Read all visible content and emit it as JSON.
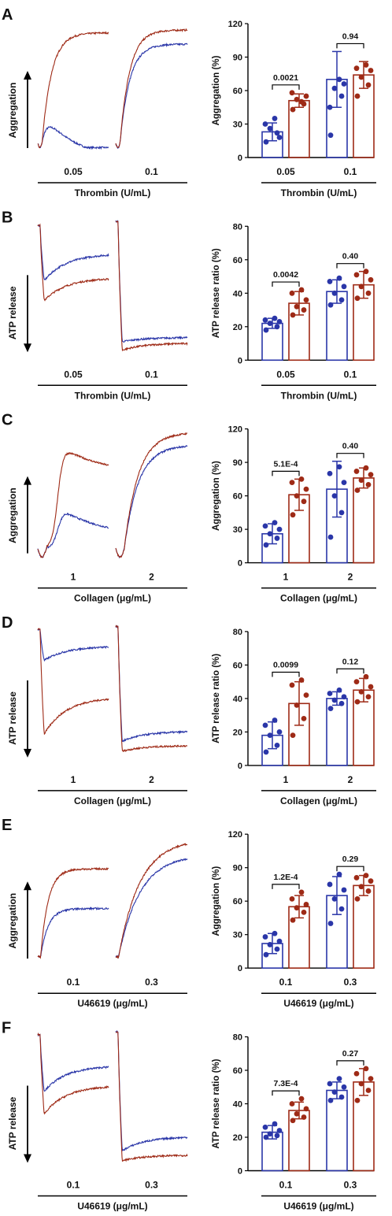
{
  "colors": {
    "control": "#2a36a8",
    "treated": "#9e2a16",
    "axis": "#111111"
  },
  "panels": [
    {
      "label": "A",
      "trace": {
        "ylabel": "Aggregation",
        "arrow": "up",
        "doses": [
          "0.05",
          "0.1"
        ],
        "xtitle": "Thrombin (U/mL)",
        "kind": "agg",
        "segments": [
          {
            "control": {
              "start": 0.1,
              "peak": 0.33,
              "end": 0.07
            },
            "treated": {
              "start": 0.1,
              "peak": 0.88,
              "end": 0.88
            }
          },
          {
            "control": {
              "start": 0.1,
              "peak": 0.8,
              "end": 0.8
            },
            "treated": {
              "start": 0.1,
              "peak": 0.9,
              "end": 0.9
            }
          }
        ]
      },
      "chart_data": {
        "type": "bar",
        "ylabel": "Aggregation (%)",
        "xlabel": "Thrombin (U/mL)",
        "ylim": [
          0,
          120
        ],
        "yticks": [
          0,
          30,
          60,
          90,
          120
        ],
        "categories": [
          "0.05",
          "0.1"
        ],
        "series": [
          {
            "values": [
              23,
              70
            ],
            "errors": [
              8,
              25
            ],
            "points": [
              [
                14,
                22,
                26,
                18,
                30,
                35
              ],
              [
                20,
                55,
                62,
                66,
                45,
                70
              ]
            ]
          },
          {
            "values": [
              51,
              74
            ],
            "errors": [
              6,
              12
            ],
            "points": [
              [
                43,
                48,
                52,
                55,
                58,
                50
              ],
              [
                55,
                65,
                72,
                78,
                80,
                83
              ]
            ]
          }
        ],
        "annotations": [
          "0.0021",
          "0.94"
        ]
      }
    },
    {
      "label": "B",
      "trace": {
        "ylabel": "ATP release",
        "arrow": "down",
        "doses": [
          "0.05",
          "0.1"
        ],
        "xtitle": "Thrombin (U/mL)",
        "kind": "atp",
        "segments": [
          {
            "control": {
              "start": 0.95,
              "peak": 0.56,
              "end": 0.75
            },
            "treated": {
              "start": 0.95,
              "peak": 0.42,
              "end": 0.58
            }
          },
          {
            "control": {
              "start": 0.98,
              "peak": 0.13,
              "end": 0.16
            },
            "treated": {
              "start": 0.98,
              "peak": 0.07,
              "end": 0.12
            }
          }
        ]
      },
      "chart_data": {
        "type": "bar",
        "ylabel": "ATP release ratio (%)",
        "xlabel": "Thrombin (U/mL)",
        "ylim": [
          0,
          80
        ],
        "yticks": [
          0,
          20,
          40,
          60,
          80
        ],
        "categories": [
          "0.05",
          "0.1"
        ],
        "series": [
          {
            "values": [
              22,
              41
            ],
            "errors": [
              3,
              7
            ],
            "points": [
              [
                18,
                20,
                22,
                23,
                24,
                25
              ],
              [
                33,
                36,
                40,
                44,
                47,
                49
              ]
            ]
          },
          {
            "values": [
              34,
              45
            ],
            "errors": [
              7,
              8
            ],
            "points": [
              [
                27,
                30,
                32,
                36,
                40,
                42
              ],
              [
                37,
                40,
                44,
                48,
                51,
                53
              ]
            ]
          }
        ],
        "annotations": [
          "0.0042",
          "0.40"
        ]
      }
    },
    {
      "label": "C",
      "trace": {
        "ylabel": "Aggregation",
        "arrow": "up",
        "doses": [
          "1",
          "2"
        ],
        "xtitle": "Collagen (μg/mL)",
        "kind": "agg2",
        "segments": [
          {
            "control": {
              "start": 0.1,
              "peak": 0.36,
              "end": 0.18
            },
            "treated": {
              "start": 0.1,
              "peak": 0.8,
              "end": 0.62
            }
          },
          {
            "control": {
              "start": 0.1,
              "peak": 0.83,
              "end": 0.83
            },
            "treated": {
              "start": 0.1,
              "peak": 0.92,
              "end": 0.92
            }
          }
        ]
      },
      "chart_data": {
        "type": "bar",
        "ylabel": "Aggregation (%)",
        "xlabel": "Collagen (μg/mL)",
        "ylim": [
          0,
          120
        ],
        "yticks": [
          0,
          30,
          60,
          90,
          120
        ],
        "categories": [
          "1",
          "2"
        ],
        "series": [
          {
            "values": [
              26,
              66
            ],
            "errors": [
              9,
              25
            ],
            "points": [
              [
                16,
                22,
                26,
                30,
                33,
                36
              ],
              [
                23,
                45,
                60,
                72,
                80,
                86
              ]
            ]
          },
          {
            "values": [
              61,
              76
            ],
            "errors": [
              14,
              9
            ],
            "points": [
              [
                43,
                55,
                60,
                66,
                72,
                75
              ],
              [
                65,
                70,
                74,
                79,
                82,
                85
              ]
            ]
          }
        ],
        "annotations": [
          "5.1E-4",
          "0.40"
        ]
      }
    },
    {
      "label": "D",
      "trace": {
        "ylabel": "ATP release",
        "arrow": "down",
        "doses": [
          "1",
          "2"
        ],
        "xtitle": "Collagen (μg/mL)",
        "kind": "atp",
        "segments": [
          {
            "control": {
              "start": 0.96,
              "peak": 0.74,
              "end": 0.84
            },
            "treated": {
              "start": 0.96,
              "peak": 0.22,
              "end": 0.48
            }
          },
          {
            "control": {
              "start": 0.98,
              "peak": 0.17,
              "end": 0.24
            },
            "treated": {
              "start": 0.98,
              "peak": 0.1,
              "end": 0.14
            }
          }
        ]
      },
      "chart_data": {
        "type": "bar",
        "ylabel": "ATP release ratio (%)",
        "xlabel": "Collagen (μg/mL)",
        "ylim": [
          0,
          80
        ],
        "yticks": [
          0,
          20,
          40,
          60,
          80
        ],
        "categories": [
          "1",
          "2"
        ],
        "series": [
          {
            "values": [
              18,
              40
            ],
            "errors": [
              8,
              4
            ],
            "points": [
              [
                8,
                12,
                18,
                20,
                24,
                27
              ],
              [
                34,
                37,
                39,
                41,
                43,
                45
              ]
            ]
          },
          {
            "values": [
              37,
              45
            ],
            "errors": [
              13,
              7
            ],
            "points": [
              [
                18,
                28,
                36,
                42,
                48,
                51
              ],
              [
                38,
                41,
                44,
                47,
                50,
                53
              ]
            ]
          }
        ],
        "annotations": [
          "0.0099",
          "0.12"
        ]
      }
    },
    {
      "label": "E",
      "trace": {
        "ylabel": "Aggregation",
        "arrow": "up",
        "doses": [
          "0.1",
          "0.3"
        ],
        "xtitle": "U46619 (μg/mL)",
        "kind": "agg3",
        "segments": [
          {
            "control": {
              "start": 0.08,
              "peak": 0.42,
              "end": 0.42
            },
            "treated": {
              "start": 0.08,
              "peak": 0.7,
              "end": 0.7
            }
          },
          {
            "control": {
              "start": 0.08,
              "peak": 0.8,
              "end": 0.8
            },
            "treated": {
              "start": 0.08,
              "peak": 0.91,
              "end": 0.91
            }
          }
        ]
      },
      "chart_data": {
        "type": "bar",
        "ylabel": "Aggregation (%)",
        "xlabel": "U46619 (μg/mL)",
        "ylim": [
          0,
          120
        ],
        "yticks": [
          0,
          30,
          60,
          90,
          120
        ],
        "categories": [
          "0.1",
          "0.3"
        ],
        "series": [
          {
            "values": [
              22,
              65
            ],
            "errors": [
              9,
              17
            ],
            "points": [
              [
                12,
                17,
                21,
                24,
                28,
                31
              ],
              [
                40,
                53,
                62,
                70,
                75,
                84
              ]
            ]
          },
          {
            "values": [
              55,
              74
            ],
            "errors": [
              10,
              9
            ],
            "points": [
              [
                43,
                50,
                54,
                57,
                62,
                68
              ],
              [
                62,
                69,
                73,
                78,
                81,
                83
              ]
            ]
          }
        ],
        "annotations": [
          "1.2E-4",
          "0.29"
        ]
      }
    },
    {
      "label": "F",
      "trace": {
        "ylabel": "ATP release",
        "arrow": "down",
        "doses": [
          "0.1",
          "0.3"
        ],
        "xtitle": "U46619 (μg/mL)",
        "kind": "atp",
        "segments": [
          {
            "control": {
              "start": 0.96,
              "peak": 0.56,
              "end": 0.74
            },
            "treated": {
              "start": 0.96,
              "peak": 0.4,
              "end": 0.6
            }
          },
          {
            "control": {
              "start": 0.98,
              "peak": 0.14,
              "end": 0.24
            },
            "treated": {
              "start": 0.98,
              "peak": 0.07,
              "end": 0.11
            }
          }
        ]
      },
      "chart_data": {
        "type": "bar",
        "ylabel": "ATP release ratio (%)",
        "xlabel": "U46619 (μg/mL)",
        "ylim": [
          0,
          80
        ],
        "yticks": [
          0,
          20,
          40,
          60,
          80
        ],
        "categories": [
          "0.1",
          "0.3"
        ],
        "series": [
          {
            "values": [
              23,
              48
            ],
            "errors": [
              4,
              5
            ],
            "points": [
              [
                20,
                21,
                22,
                24,
                26,
                28
              ],
              [
                42,
                44,
                47,
                50,
                52,
                55
              ]
            ]
          },
          {
            "values": [
              36,
              53
            ],
            "errors": [
              5,
              8
            ],
            "points": [
              [
                30,
                32,
                34,
                37,
                40,
                43
              ],
              [
                42,
                48,
                52,
                55,
                58,
                61
              ]
            ]
          }
        ],
        "annotations": [
          "7.3E-4",
          "0.27"
        ]
      }
    }
  ]
}
